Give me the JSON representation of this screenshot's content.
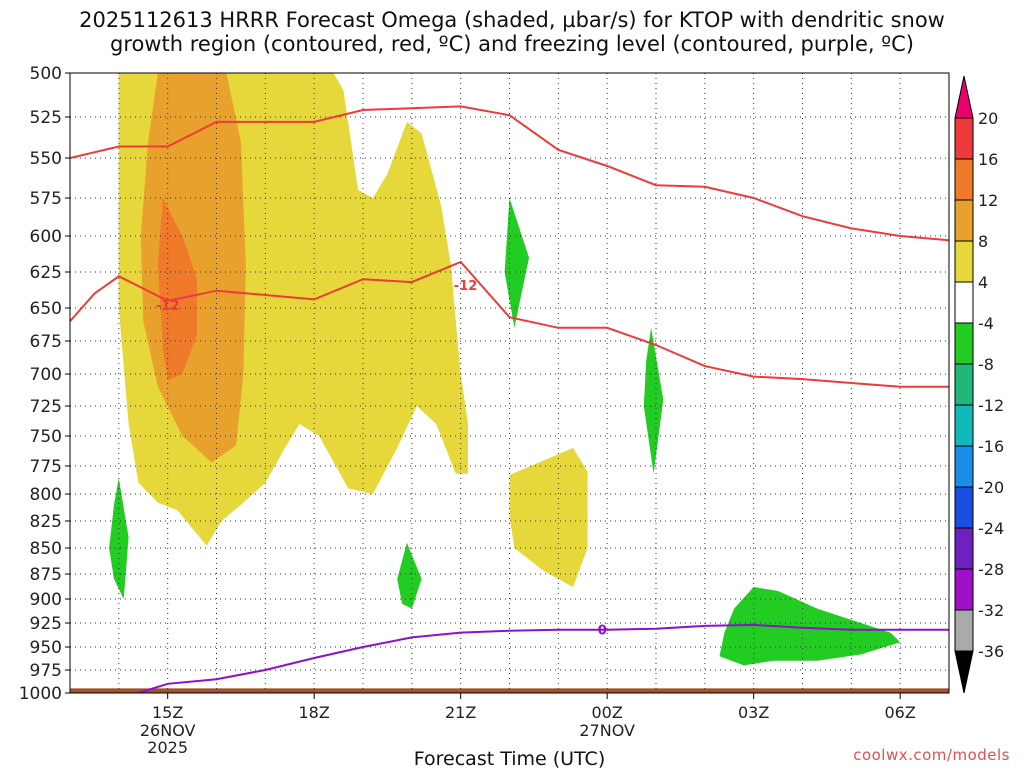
{
  "chart_data": {
    "type": "time-height",
    "title_line1": "2025112613 HRRR Forecast Omega (shaded, µbar/s) for KTOP with dendritic snow",
    "title_line2": "growth region (contoured, red, ºC) and freezing level (contoured, purple, ºC)",
    "xlabel": "Forecast Time (UTC)",
    "x_range_hours": [
      13,
      31
    ],
    "y_range_hPa": [
      500,
      1000
    ],
    "y_ticks": [
      500,
      525,
      550,
      575,
      600,
      625,
      650,
      675,
      700,
      725,
      750,
      775,
      800,
      825,
      850,
      875,
      900,
      925,
      950,
      975,
      1000
    ],
    "x_ticks": [
      {
        "h": 15,
        "label": "15Z",
        "sub1": "26NOV",
        "sub2": "2025"
      },
      {
        "h": 18,
        "label": "18Z",
        "sub1": "",
        "sub2": ""
      },
      {
        "h": 21,
        "label": "21Z",
        "sub1": "",
        "sub2": ""
      },
      {
        "h": 24,
        "label": "00Z",
        "sub1": "27NOV",
        "sub2": ""
      },
      {
        "h": 27,
        "label": "03Z",
        "sub1": "",
        "sub2": ""
      },
      {
        "h": 30,
        "label": "06Z",
        "sub1": "",
        "sub2": ""
      }
    ],
    "colorbar": {
      "labels": [
        "20",
        "16",
        "12",
        "8",
        "4",
        "-4",
        "-8",
        "-12",
        "-16",
        "-20",
        "-24",
        "-28",
        "-32",
        "-36"
      ],
      "colors": [
        "#e8006f",
        "#ee3a3a",
        "#ee7a2a",
        "#e8a12d",
        "#e6d83a",
        "#ffffff",
        "#22cc22",
        "#1fb87a",
        "#11b9b9",
        "#1a8fea",
        "#1a4fe0",
        "#7020c0",
        "#a010c8",
        "#aaaaaa",
        "#000000"
      ]
    },
    "omega_shading": [
      {
        "level": 4,
        "color": "#e6d83a",
        "points": [
          [
            14.0,
            500
          ],
          [
            18.4,
            500
          ],
          [
            18.6,
            510
          ],
          [
            18.9,
            570
          ],
          [
            19.2,
            575
          ],
          [
            19.5,
            560
          ],
          [
            19.9,
            528
          ],
          [
            20.2,
            535
          ],
          [
            20.6,
            580
          ],
          [
            20.8,
            620
          ],
          [
            20.9,
            660
          ],
          [
            21.0,
            700
          ],
          [
            21.15,
            740
          ],
          [
            21.15,
            782
          ],
          [
            20.9,
            782
          ],
          [
            20.5,
            740
          ],
          [
            20.1,
            725
          ],
          [
            19.7,
            760
          ],
          [
            19.2,
            800
          ],
          [
            18.7,
            795
          ],
          [
            18.1,
            750
          ],
          [
            17.7,
            740
          ],
          [
            17.4,
            760
          ],
          [
            17.0,
            790
          ],
          [
            16.5,
            810
          ],
          [
            16.1,
            825
          ],
          [
            15.8,
            848
          ],
          [
            15.2,
            815
          ],
          [
            14.8,
            808
          ],
          [
            14.4,
            790
          ],
          [
            14.2,
            740
          ],
          [
            14.0,
            650
          ]
        ]
      },
      {
        "level": 4,
        "color": "#e6d83a",
        "points": [
          [
            22.0,
            783
          ],
          [
            23.3,
            760
          ],
          [
            23.6,
            780
          ],
          [
            23.6,
            850
          ],
          [
            23.3,
            888
          ],
          [
            22.7,
            872
          ],
          [
            22.1,
            850
          ],
          [
            22.0,
            820
          ]
        ]
      },
      {
        "level": 8,
        "color": "#e8a12d",
        "points": [
          [
            14.8,
            500
          ],
          [
            16.2,
            500
          ],
          [
            16.5,
            540
          ],
          [
            16.6,
            620
          ],
          [
            16.55,
            700
          ],
          [
            16.4,
            758
          ],
          [
            15.9,
            772
          ],
          [
            15.3,
            750
          ],
          [
            14.8,
            710
          ],
          [
            14.5,
            660
          ],
          [
            14.45,
            600
          ],
          [
            14.6,
            540
          ]
        ]
      },
      {
        "level": 12,
        "color": "#ee7a2a",
        "points": [
          [
            14.9,
            575
          ],
          [
            15.3,
            600
          ],
          [
            15.6,
            630
          ],
          [
            15.6,
            670
          ],
          [
            15.3,
            700
          ],
          [
            15.0,
            705
          ],
          [
            14.9,
            680
          ],
          [
            14.8,
            620
          ]
        ]
      },
      {
        "level": -4,
        "color": "#22cc22",
        "points": [
          [
            14.0,
            786
          ],
          [
            14.2,
            840
          ],
          [
            14.1,
            900
          ],
          [
            13.9,
            880
          ],
          [
            13.8,
            850
          ],
          [
            13.9,
            810
          ]
        ]
      },
      {
        "level": -4,
        "color": "#22cc22",
        "points": [
          [
            19.9,
            845
          ],
          [
            20.2,
            880
          ],
          [
            20.0,
            910
          ],
          [
            19.8,
            905
          ],
          [
            19.7,
            880
          ]
        ]
      },
      {
        "level": -4,
        "color": "#22cc22",
        "points": [
          [
            22.0,
            575
          ],
          [
            22.4,
            615
          ],
          [
            22.1,
            665
          ],
          [
            21.9,
            625
          ]
        ]
      },
      {
        "level": -4,
        "color": "#22cc22",
        "points": [
          [
            24.9,
            665
          ],
          [
            25.15,
            720
          ],
          [
            24.95,
            782
          ],
          [
            24.75,
            725
          ],
          [
            24.8,
            690
          ]
        ]
      },
      {
        "level": -4,
        "color": "#22cc22",
        "points": [
          [
            27.0,
            888
          ],
          [
            27.5,
            892
          ],
          [
            28.3,
            910
          ],
          [
            28.9,
            920
          ],
          [
            29.8,
            935
          ],
          [
            30.0,
            945
          ],
          [
            29.2,
            958
          ],
          [
            28.3,
            965
          ],
          [
            27.4,
            965
          ],
          [
            26.8,
            970
          ],
          [
            26.3,
            960
          ],
          [
            26.4,
            935
          ],
          [
            26.6,
            910
          ]
        ]
      }
    ],
    "dgz_contours": [
      {
        "color": "#ee3a3a",
        "label": "",
        "points": [
          [
            13.0,
            550
          ],
          [
            14.0,
            543
          ],
          [
            15.0,
            543
          ],
          [
            16.0,
            528
          ],
          [
            18.0,
            528
          ],
          [
            19.0,
            521
          ],
          [
            21.0,
            519
          ],
          [
            22.0,
            524
          ],
          [
            23.0,
            545
          ],
          [
            24.0,
            555
          ],
          [
            25.0,
            567
          ],
          [
            26.0,
            568
          ],
          [
            27.0,
            575
          ],
          [
            28.0,
            587
          ],
          [
            29.0,
            595
          ],
          [
            30.0,
            600
          ],
          [
            31.0,
            603
          ]
        ]
      },
      {
        "color": "#ee3a3a",
        "label": "-12",
        "label_at": [
          15.0,
          648
        ],
        "label_at2": [
          21.1,
          634
        ],
        "points": [
          [
            13.0,
            660
          ],
          [
            13.5,
            640
          ],
          [
            14.0,
            628
          ],
          [
            15.0,
            645
          ],
          [
            16.0,
            638
          ],
          [
            18.0,
            644
          ],
          [
            19.0,
            630
          ],
          [
            20.0,
            632
          ],
          [
            21.0,
            618
          ],
          [
            22.0,
            657
          ],
          [
            23.0,
            665
          ],
          [
            24.0,
            665
          ],
          [
            25.0,
            678
          ],
          [
            26.0,
            694
          ],
          [
            27.0,
            702
          ],
          [
            28.0,
            704
          ],
          [
            29.0,
            707
          ],
          [
            30.0,
            710
          ],
          [
            31.0,
            710
          ]
        ]
      },
      {
        "color": "#9010c8",
        "label": "0",
        "label_at": [
          23.9,
          932
        ],
        "points": [
          [
            14.4,
            1000
          ],
          [
            15.0,
            990
          ],
          [
            16.0,
            985
          ],
          [
            17.0,
            975
          ],
          [
            18.0,
            962
          ],
          [
            19.0,
            950
          ],
          [
            20.0,
            940
          ],
          [
            21.0,
            935
          ],
          [
            22.0,
            933
          ],
          [
            23.0,
            932
          ],
          [
            24.0,
            932
          ],
          [
            25.0,
            931
          ],
          [
            26.0,
            928
          ],
          [
            27.0,
            927
          ],
          [
            28.0,
            930
          ],
          [
            29.0,
            932
          ],
          [
            30.0,
            932
          ],
          [
            31.0,
            932
          ]
        ]
      }
    ],
    "terrain": {
      "color": "#a0522d",
      "points": [
        [
          13.0,
          1000
        ],
        [
          31.0,
          1000
        ],
        [
          31.0,
          995
        ],
        [
          13.0,
          995
        ]
      ]
    }
  },
  "credit": "coolwx.com/models"
}
